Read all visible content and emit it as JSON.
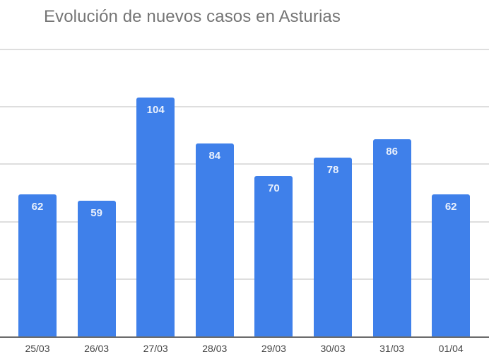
{
  "chart_data": {
    "type": "bar",
    "title": "Evolución de nuevos casos en Asturias",
    "xlabel": "",
    "ylabel": "",
    "categories": [
      "25/03",
      "26/03",
      "27/03",
      "28/03",
      "29/03",
      "30/03",
      "31/03",
      "01/04"
    ],
    "values": [
      62,
      59,
      104,
      84,
      70,
      78,
      86,
      62
    ],
    "ylim": [
      0,
      125
    ],
    "gridlines": [
      25,
      50,
      75,
      100,
      125
    ],
    "grid": true,
    "legend": "none",
    "data_labels": true,
    "bar_color": "#3f80ea"
  },
  "colors": {
    "bar": "#3f80ea",
    "bar_label": "#e9f0fc",
    "title": "#757575",
    "grid": "#dedede",
    "axis": "#6b6b6b",
    "tick_label": "#444444"
  }
}
